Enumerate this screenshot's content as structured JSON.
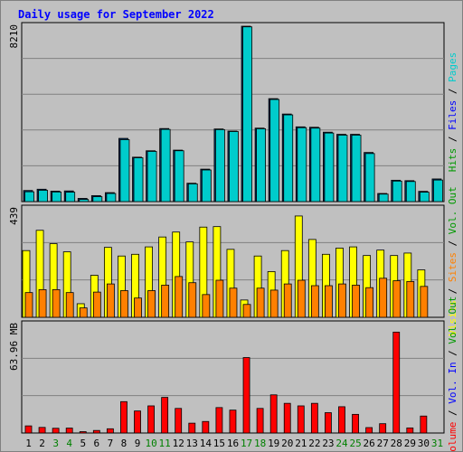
{
  "title": "Daily usage for September 2022",
  "colors": {
    "hits": "#009900",
    "files": "#0000ff",
    "pages": "#00cccc",
    "visits": "#ffff00",
    "sites": "#ff8000",
    "kbytes": "#ff0000",
    "panel_bg": "#c0c0c0",
    "grid": "#808080"
  },
  "right_labels": {
    "top": [
      {
        "text": "Hits",
        "color": "#009900"
      },
      {
        "text": " / ",
        "color": "#000000"
      },
      {
        "text": "Files",
        "color": "#0000ff"
      },
      {
        "text": " / ",
        "color": "#000000"
      },
      {
        "text": "Pages",
        "color": "#00cccc"
      }
    ],
    "middle": [
      {
        "text": "Visits",
        "color": "#ffff00"
      },
      {
        "text": " / ",
        "color": "#000000"
      },
      {
        "text": "Sites",
        "color": "#ff8000"
      },
      {
        "text": " / ",
        "color": "#000000"
      },
      {
        "text": "Vol. Out",
        "color": "#009900"
      }
    ],
    "bottom": [
      {
        "text": "Volume",
        "color": "#ff0000"
      },
      {
        "text": " / ",
        "color": "#000000"
      },
      {
        "text": "Vol. In",
        "color": "#0000ff"
      },
      {
        "text": " / ",
        "color": "#000000"
      },
      {
        "text": "Vol. Out",
        "color": "#009900"
      }
    ]
  },
  "chart_data": [
    {
      "type": "bar",
      "panel": "top",
      "ymax_label": "8210",
      "ylim": [
        0,
        8210
      ],
      "grid": true,
      "series": [
        {
          "name": "Hits",
          "values": [
            520,
            580,
            490,
            500,
            150,
            280,
            420,
            2960,
            2080,
            2380,
            3420,
            2410,
            860,
            1520,
            3400,
            3300,
            8210,
            3440,
            4820,
            4100,
            3500,
            3480,
            3250,
            3150,
            3150,
            2300,
            380,
            1000,
            980,
            480,
            1060
          ]
        },
        {
          "name": "Files",
          "values": [
            460,
            530,
            450,
            440,
            100,
            230,
            380,
            2900,
            2050,
            2350,
            3380,
            2380,
            830,
            1480,
            3370,
            3280,
            8180,
            3410,
            4780,
            4060,
            3460,
            3440,
            3210,
            3110,
            3110,
            2250,
            350,
            960,
            940,
            440,
            1010
          ]
        }
      ]
    },
    {
      "type": "bar",
      "panel": "middle",
      "ymax_label": "439",
      "ylim": [
        0,
        439
      ],
      "grid": true,
      "series": [
        {
          "name": "Visits",
          "values": [
            270,
            352,
            298,
            265,
            55,
            170,
            283,
            248,
            255,
            285,
            325,
            345,
            305,
            365,
            367,
            275,
            70,
            248,
            185,
            270,
            410,
            315,
            255,
            280,
            285,
            250,
            272,
            250,
            260,
            192,
            0
          ]
        },
        {
          "name": "Sites",
          "values": [
            100,
            112,
            112,
            100,
            38,
            102,
            135,
            108,
            78,
            108,
            130,
            165,
            140,
            92,
            150,
            118,
            52,
            118,
            110,
            135,
            150,
            128,
            128,
            135,
            130,
            120,
            158,
            148,
            145,
            125,
            0
          ]
        }
      ]
    },
    {
      "type": "bar",
      "panel": "bottom",
      "ymax_label": "63.96 MB",
      "ylim": [
        0,
        63.96
      ],
      "grid": true,
      "series": [
        {
          "name": "Volume",
          "values": [
            4.2,
            3.3,
            2.8,
            2.9,
            0.8,
            1.5,
            2.5,
            18.5,
            13.0,
            16.0,
            21.0,
            14.5,
            5.8,
            6.8,
            15.0,
            13.5,
            44.5,
            14.5,
            22.5,
            17.5,
            16.0,
            17.5,
            12.0,
            15.5,
            11.0,
            3.2,
            5.5,
            59.5,
            3.0,
            10.0,
            0
          ]
        }
      ]
    }
  ],
  "x_labels": [
    {
      "text": "1",
      "color": "#000000"
    },
    {
      "text": "2",
      "color": "#000000"
    },
    {
      "text": "3",
      "color": "#008000"
    },
    {
      "text": "4",
      "color": "#008000"
    },
    {
      "text": "5",
      "color": "#000000"
    },
    {
      "text": "6",
      "color": "#000000"
    },
    {
      "text": "7",
      "color": "#000000"
    },
    {
      "text": "8",
      "color": "#000000"
    },
    {
      "text": "9",
      "color": "#000000"
    },
    {
      "text": "10",
      "color": "#008000"
    },
    {
      "text": "11",
      "color": "#008000"
    },
    {
      "text": "12",
      "color": "#000000"
    },
    {
      "text": "13",
      "color": "#000000"
    },
    {
      "text": "14",
      "color": "#000000"
    },
    {
      "text": "15",
      "color": "#000000"
    },
    {
      "text": "16",
      "color": "#000000"
    },
    {
      "text": "17",
      "color": "#008000"
    },
    {
      "text": "18",
      "color": "#008000"
    },
    {
      "text": "19",
      "color": "#000000"
    },
    {
      "text": "20",
      "color": "#000000"
    },
    {
      "text": "21",
      "color": "#000000"
    },
    {
      "text": "22",
      "color": "#000000"
    },
    {
      "text": "23",
      "color": "#000000"
    },
    {
      "text": "24",
      "color": "#008000"
    },
    {
      "text": "25",
      "color": "#008000"
    },
    {
      "text": "26",
      "color": "#000000"
    },
    {
      "text": "27",
      "color": "#000000"
    },
    {
      "text": "28",
      "color": "#000000"
    },
    {
      "text": "29",
      "color": "#000000"
    },
    {
      "text": "30",
      "color": "#000000"
    },
    {
      "text": "31",
      "color": "#008000"
    }
  ]
}
